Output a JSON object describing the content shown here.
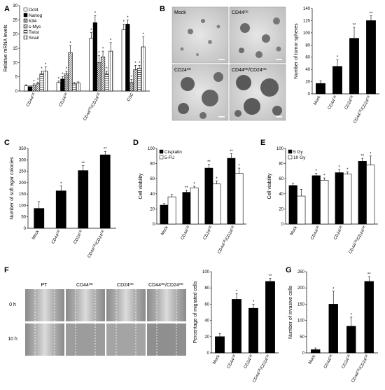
{
  "figure": {
    "panel_labels": [
      "A",
      "B",
      "C",
      "D",
      "E",
      "F",
      "G"
    ],
    "photo_B_labels": [
      "Mock",
      "CD44OE",
      "CD24OE",
      "CD44OE/CD24OE"
    ],
    "photo_F_columns": [
      "PT",
      "CD44OE",
      "CD24OE",
      "CD44OE/CD24OE"
    ],
    "photo_F_rows": [
      "0 h",
      "10 h"
    ]
  },
  "chart_data": [
    {
      "id": "A",
      "type": "bar",
      "ylabel": "Relative mRNA levels",
      "ylim": [
        0,
        30
      ],
      "yticks": [
        0,
        5,
        10,
        15,
        20,
        25,
        30
      ],
      "categories": [
        "CD44OE",
        "CD24OE",
        "CD44OE/CD24OE",
        "CSC"
      ],
      "legend_position": "top-left",
      "series": [
        {
          "name": "Oct4",
          "values": [
            1.8,
            3.0,
            18.5,
            21.5
          ],
          "errors": [
            0.4,
            0.5,
            2.0,
            2.0
          ],
          "sig": [
            "",
            "*",
            "*",
            "*"
          ]
        },
        {
          "name": "Nanog",
          "values": [
            1.5,
            4.2,
            24.0,
            23.5
          ],
          "errors": [
            0.3,
            0.8,
            2.5,
            1.5
          ],
          "sig": [
            "",
            "*",
            "*",
            "*"
          ]
        },
        {
          "name": "Klf4",
          "values": [
            2.0,
            6.0,
            10.0,
            3.0
          ],
          "errors": [
            0.5,
            1.0,
            2.5,
            1.0
          ],
          "sig": [
            "*",
            "*",
            "*",
            "*"
          ]
        },
        {
          "name": "c-Myc",
          "values": [
            2.5,
            13.5,
            12.0,
            7.5
          ],
          "errors": [
            0.6,
            2.5,
            2.0,
            1.5
          ],
          "sig": [
            "*",
            "*",
            "*",
            "*"
          ]
        },
        {
          "name": "Twist",
          "values": [
            6.0,
            2.5,
            6.0,
            8.0
          ],
          "errors": [
            1.0,
            0.5,
            1.0,
            1.0
          ],
          "sig": [
            "*",
            "",
            "*",
            "*"
          ]
        },
        {
          "name": "Snail",
          "values": [
            7.0,
            2.8,
            14.0,
            15.5
          ],
          "errors": [
            1.5,
            0.4,
            3.0,
            3.5
          ],
          "sig": [
            "*",
            "",
            "*",
            "*"
          ]
        }
      ]
    },
    {
      "id": "B",
      "type": "bar",
      "ylabel": "Number of tumor spheres",
      "ylim": [
        0,
        140
      ],
      "yticks": [
        0,
        20,
        40,
        60,
        80,
        100,
        120,
        140
      ],
      "categories": [
        "Mock",
        "CD44OE",
        "CD24OE",
        "CD44OE/CD24OE"
      ],
      "series": [
        {
          "name": "",
          "values": [
            17,
            45,
            91,
            120
          ],
          "errors": [
            4,
            11,
            18,
            8
          ],
          "sig": [
            "",
            "*",
            "**",
            "**"
          ]
        }
      ]
    },
    {
      "id": "C",
      "type": "bar",
      "ylabel": "Number of soft agar colonies",
      "ylim": [
        0,
        350
      ],
      "yticks": [
        0,
        50,
        100,
        150,
        200,
        250,
        300,
        350
      ],
      "categories": [
        "Mock",
        "CD44OE",
        "CD24OE",
        "CD44OE/CD24OE"
      ],
      "series": [
        {
          "name": "",
          "values": [
            87,
            164,
            253,
            322
          ],
          "errors": [
            30,
            22,
            22,
            15
          ],
          "sig": [
            "",
            "*",
            "**",
            "**"
          ]
        }
      ]
    },
    {
      "id": "D",
      "type": "bar",
      "ylabel": "Cell viability",
      "ylim": [
        0,
        100
      ],
      "yticks": [
        0,
        20,
        40,
        60,
        80,
        100
      ],
      "categories": [
        "Mock",
        "CD44OE",
        "CD24OE",
        "CD44OE/CD24OE"
      ],
      "legend_position": "top-left",
      "series": [
        {
          "name": "Cisplatin",
          "values": [
            25,
            42,
            74,
            87
          ],
          "errors": [
            2,
            3,
            5,
            6
          ],
          "sig": [
            "",
            "**",
            "**",
            "**"
          ]
        },
        {
          "name": "5-FU",
          "values": [
            36,
            48,
            53,
            67
          ],
          "errors": [
            3,
            2,
            4,
            7
          ],
          "sig": [
            "",
            "*",
            "*",
            "*"
          ]
        }
      ]
    },
    {
      "id": "E",
      "type": "bar",
      "ylabel": "Cell viability",
      "ylim": [
        0,
        100
      ],
      "yticks": [
        0,
        20,
        40,
        60,
        80,
        100
      ],
      "categories": [
        "Mock",
        "CD44OE",
        "CD24OE",
        "CD44OE/CD24OE"
      ],
      "legend_position": "top-left",
      "series": [
        {
          "name": "5 Gy",
          "values": [
            51,
            64,
            68,
            83
          ],
          "errors": [
            3,
            3,
            4,
            4
          ],
          "sig": [
            "",
            "*",
            "*",
            "**"
          ]
        },
        {
          "name": "10 Gy",
          "values": [
            37,
            58,
            66,
            78
          ],
          "errors": [
            9,
            3,
            3,
            12
          ],
          "sig": [
            "",
            "*",
            "*",
            "*"
          ]
        }
      ]
    },
    {
      "id": "F",
      "type": "bar",
      "ylabel": "Percentage of migrated cells",
      "ylim": [
        0,
        100
      ],
      "yticks": [
        0,
        20,
        40,
        60,
        80,
        100
      ],
      "categories": [
        "Mock",
        "CD44OE",
        "CD24OE",
        "CD44OE/CD24OE"
      ],
      "series": [
        {
          "name": "",
          "values": [
            20,
            66,
            55,
            88
          ],
          "errors": [
            4,
            7,
            5,
            4
          ],
          "sig": [
            "",
            "*",
            "*",
            "**"
          ]
        }
      ]
    },
    {
      "id": "G",
      "type": "bar",
      "ylabel": "Number of invasive cells",
      "ylim": [
        0,
        250
      ],
      "yticks": [
        0,
        50,
        100,
        150,
        200,
        250
      ],
      "categories": [
        "Mock",
        "CD44OE",
        "CD24OE",
        "CD44OE/CD24OE"
      ],
      "series": [
        {
          "name": "",
          "values": [
            10,
            150,
            82,
            220
          ],
          "errors": [
            5,
            40,
            28,
            15
          ],
          "sig": [
            "",
            "*",
            "*",
            "**"
          ]
        }
      ]
    }
  ]
}
